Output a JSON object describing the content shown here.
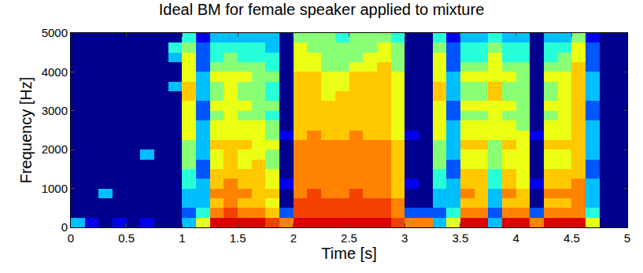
{
  "chart_data": {
    "type": "heatmap",
    "title": "Ideal BM for female speaker applied to mixture",
    "x_label": "Time [s]",
    "y_label": "Frequency [Hz]",
    "xlim": [
      0,
      5
    ],
    "xticks": [
      0,
      0.5,
      1,
      1.5,
      2,
      2.5,
      3,
      3.5,
      4,
      4.5,
      5
    ],
    "ylim": [
      0,
      5000
    ],
    "yticks": [
      0,
      1000,
      2000,
      3000,
      4000,
      5000
    ],
    "zlim": [
      0,
      10
    ],
    "x": [
      0.0625,
      0.1875,
      0.3125,
      0.4375,
      0.5625,
      0.6875,
      0.8125,
      0.9375,
      1.0625,
      1.1875,
      1.3125,
      1.4375,
      1.5625,
      1.6875,
      1.8125,
      1.9375,
      2.0625,
      2.1875,
      2.3125,
      2.4375,
      2.5625,
      2.6875,
      2.8125,
      2.9375,
      3.0625,
      3.1875,
      3.3125,
      3.4375,
      3.5625,
      3.6875,
      3.8125,
      3.9375,
      4.0625,
      4.1875,
      4.3125,
      4.4375,
      4.5625,
      4.6875,
      4.8125,
      4.9375
    ],
    "y": [
      125,
      375,
      625,
      875,
      1125,
      1375,
      1625,
      1875,
      2125,
      2375,
      2625,
      2875,
      3125,
      3375,
      3625,
      3875,
      4125,
      4375,
      4625,
      4875
    ],
    "z": [
      [
        3,
        1,
        0,
        1,
        0,
        1,
        0,
        0,
        3,
        6,
        10,
        10,
        10,
        10,
        9,
        8,
        10,
        10,
        10,
        10,
        10,
        10,
        10,
        9,
        8,
        8,
        3,
        6,
        10,
        10,
        3,
        10,
        10,
        8,
        10,
        10,
        10,
        6,
        0,
        0
      ],
      [
        0,
        0,
        0,
        0,
        0,
        0,
        0,
        0,
        2,
        4,
        8,
        9,
        8,
        8,
        7,
        2,
        9,
        9,
        9,
        9,
        9,
        9,
        9,
        8,
        2,
        2,
        2,
        4,
        8,
        8,
        2,
        8,
        8,
        2,
        8,
        8,
        8,
        4,
        0,
        0
      ],
      [
        0,
        0,
        0,
        0,
        0,
        0,
        0,
        0,
        3,
        3,
        7,
        8,
        7,
        7,
        6,
        0,
        9,
        9,
        9,
        9,
        9,
        9,
        9,
        8,
        0,
        0,
        3,
        3,
        7,
        7,
        3,
        7,
        7,
        0,
        7,
        7,
        8,
        3,
        0,
        0
      ],
      [
        0,
        0,
        3,
        0,
        0,
        0,
        0,
        0,
        3,
        3,
        8,
        8,
        8,
        7,
        7,
        0,
        8,
        9,
        8,
        8,
        9,
        8,
        8,
        7,
        0,
        0,
        3,
        3,
        8,
        7,
        3,
        8,
        7,
        0,
        8,
        8,
        8,
        3,
        0,
        0
      ],
      [
        0,
        0,
        0,
        0,
        0,
        0,
        0,
        0,
        4,
        3,
        7,
        8,
        7,
        7,
        6,
        1,
        8,
        8,
        8,
        8,
        8,
        8,
        8,
        7,
        1,
        0,
        4,
        3,
        7,
        7,
        4,
        7,
        6,
        1,
        7,
        7,
        8,
        3,
        0,
        0
      ],
      [
        0,
        0,
        0,
        0,
        0,
        0,
        0,
        0,
        4,
        2,
        7,
        7,
        7,
        7,
        6,
        0,
        8,
        8,
        8,
        8,
        8,
        8,
        8,
        7,
        0,
        0,
        4,
        2,
        7,
        7,
        4,
        7,
        6,
        0,
        7,
        7,
        7,
        2,
        0,
        0
      ],
      [
        0,
        0,
        0,
        0,
        0,
        0,
        0,
        0,
        5,
        2,
        6,
        7,
        6,
        7,
        5,
        0,
        8,
        8,
        8,
        8,
        8,
        8,
        8,
        7,
        0,
        0,
        5,
        2,
        6,
        6,
        5,
        6,
        6,
        0,
        6,
        6,
        7,
        2,
        0,
        0
      ],
      [
        0,
        0,
        0,
        0,
        0,
        3,
        0,
        0,
        5,
        3,
        6,
        7,
        6,
        6,
        5,
        0,
        8,
        8,
        8,
        8,
        8,
        8,
        8,
        7,
        0,
        0,
        5,
        3,
        6,
        6,
        5,
        6,
        6,
        0,
        6,
        6,
        7,
        3,
        0,
        0
      ],
      [
        0,
        0,
        0,
        0,
        0,
        0,
        0,
        0,
        5,
        3,
        7,
        7,
        7,
        6,
        6,
        0,
        8,
        8,
        8,
        8,
        8,
        8,
        8,
        7,
        0,
        0,
        5,
        3,
        7,
        7,
        5,
        7,
        6,
        0,
        7,
        7,
        7,
        3,
        0,
        0
      ],
      [
        0,
        0,
        0,
        0,
        0,
        0,
        0,
        0,
        6,
        3,
        6,
        6,
        6,
        6,
        5,
        1,
        7,
        8,
        7,
        7,
        8,
        7,
        7,
        6,
        1,
        0,
        6,
        3,
        6,
        6,
        6,
        6,
        6,
        1,
        6,
        6,
        7,
        3,
        0,
        0
      ],
      [
        0,
        0,
        0,
        0,
        0,
        0,
        0,
        0,
        6,
        3,
        6,
        6,
        6,
        6,
        5,
        0,
        7,
        7,
        7,
        7,
        7,
        7,
        7,
        6,
        0,
        0,
        6,
        3,
        6,
        6,
        6,
        6,
        5,
        0,
        6,
        6,
        7,
        3,
        0,
        0
      ],
      [
        0,
        0,
        0,
        0,
        0,
        0,
        0,
        0,
        6,
        2,
        5,
        6,
        5,
        5,
        4,
        0,
        7,
        7,
        7,
        7,
        7,
        7,
        7,
        6,
        0,
        0,
        6,
        2,
        5,
        5,
        6,
        5,
        5,
        0,
        5,
        6,
        7,
        2,
        0,
        0
      ],
      [
        0,
        0,
        0,
        0,
        0,
        0,
        0,
        0,
        6,
        2,
        6,
        6,
        6,
        5,
        5,
        0,
        7,
        7,
        7,
        7,
        7,
        7,
        7,
        6,
        0,
        0,
        6,
        2,
        6,
        6,
        6,
        6,
        5,
        0,
        6,
        6,
        7,
        2,
        0,
        0
      ],
      [
        0,
        0,
        0,
        0,
        0,
        0,
        0,
        0,
        7,
        3,
        5,
        6,
        5,
        5,
        4,
        0,
        7,
        7,
        6,
        7,
        7,
        7,
        7,
        6,
        0,
        0,
        7,
        3,
        5,
        5,
        7,
        5,
        5,
        0,
        5,
        6,
        7,
        3,
        0,
        0
      ],
      [
        0,
        0,
        0,
        0,
        0,
        0,
        0,
        3,
        7,
        3,
        5,
        6,
        5,
        5,
        4,
        0,
        7,
        7,
        6,
        6,
        7,
        7,
        7,
        6,
        0,
        0,
        7,
        3,
        5,
        5,
        7,
        5,
        5,
        0,
        5,
        6,
        7,
        3,
        0,
        0
      ],
      [
        0,
        0,
        0,
        0,
        0,
        0,
        0,
        0,
        6,
        3,
        6,
        6,
        6,
        5,
        5,
        0,
        7,
        7,
        6,
        6,
        7,
        7,
        7,
        6,
        0,
        0,
        6,
        3,
        6,
        6,
        6,
        6,
        5,
        0,
        6,
        6,
        7,
        3,
        0,
        0
      ],
      [
        0,
        0,
        0,
        0,
        0,
        0,
        0,
        0,
        6,
        2,
        5,
        5,
        5,
        5,
        4,
        0,
        6,
        6,
        5,
        5,
        6,
        6,
        7,
        5,
        0,
        0,
        6,
        2,
        5,
        5,
        6,
        5,
        5,
        0,
        5,
        5,
        7,
        2,
        0,
        0
      ],
      [
        0,
        0,
        0,
        0,
        0,
        0,
        0,
        3,
        6,
        2,
        4,
        5,
        4,
        4,
        4,
        0,
        6,
        6,
        5,
        5,
        5,
        6,
        6,
        5,
        0,
        0,
        6,
        2,
        4,
        4,
        6,
        4,
        4,
        0,
        4,
        5,
        6,
        2,
        0,
        0
      ],
      [
        0,
        0,
        0,
        0,
        0,
        0,
        0,
        4,
        5,
        2,
        4,
        4,
        4,
        4,
        3,
        0,
        6,
        5,
        5,
        5,
        5,
        5,
        6,
        5,
        0,
        0,
        5,
        2,
        4,
        4,
        5,
        4,
        4,
        0,
        4,
        4,
        6,
        2,
        0,
        0
      ],
      [
        0,
        0,
        0,
        0,
        0,
        0,
        0,
        0,
        4,
        1,
        3,
        3,
        3,
        3,
        3,
        0,
        5,
        5,
        5,
        4,
        5,
        5,
        5,
        4,
        0,
        0,
        4,
        1,
        3,
        3,
        4,
        3,
        3,
        0,
        3,
        3,
        5,
        1,
        0,
        0
      ]
    ]
  }
}
